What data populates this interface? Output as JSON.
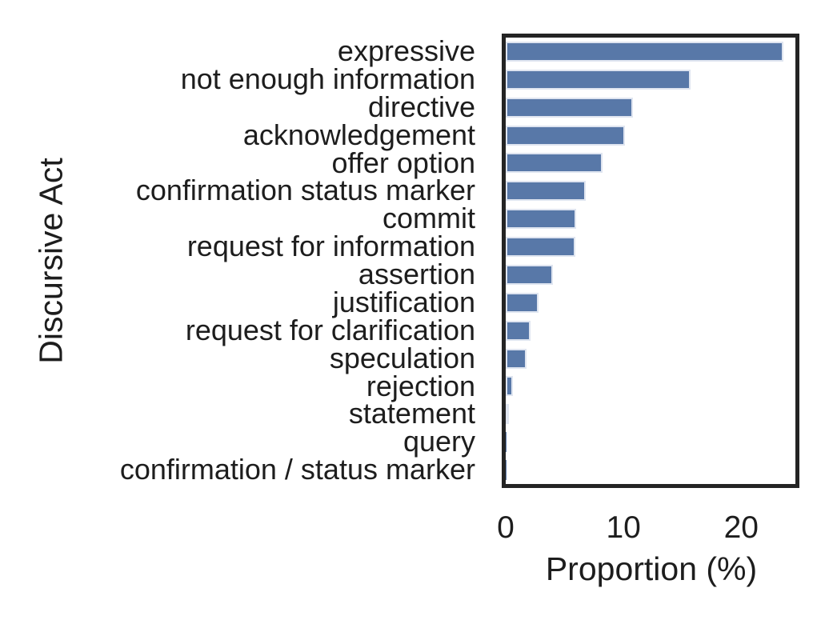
{
  "figure": {
    "background_color": "#ffffff",
    "text_color": "#1d1d1d",
    "axis_border_color": "#242424"
  },
  "chart_data": {
    "type": "bar",
    "orientation": "horizontal",
    "title": "",
    "xlabel": "Proportion (%)",
    "ylabel": "Discursive Act",
    "xlim": [
      0,
      24.6
    ],
    "xticks": [
      0,
      10,
      20
    ],
    "grid": false,
    "legend": null,
    "bar_color": "#5878a8",
    "bar_edge_color": "#dfe5f0",
    "categories": [
      "expressive",
      "not enough information",
      "directive",
      "acknowledgement",
      "offer option",
      "confirmation status marker",
      "commit",
      "request for information",
      "assertion",
      "justification",
      "request for clarification",
      "speculation",
      "rejection",
      "statement",
      "query",
      "confirmation / status marker"
    ],
    "values": [
      23.6,
      15.7,
      10.8,
      10.1,
      8.2,
      6.8,
      6.0,
      5.9,
      4.0,
      2.8,
      2.1,
      1.8,
      0.6,
      0.2,
      0.05,
      0.03
    ]
  }
}
